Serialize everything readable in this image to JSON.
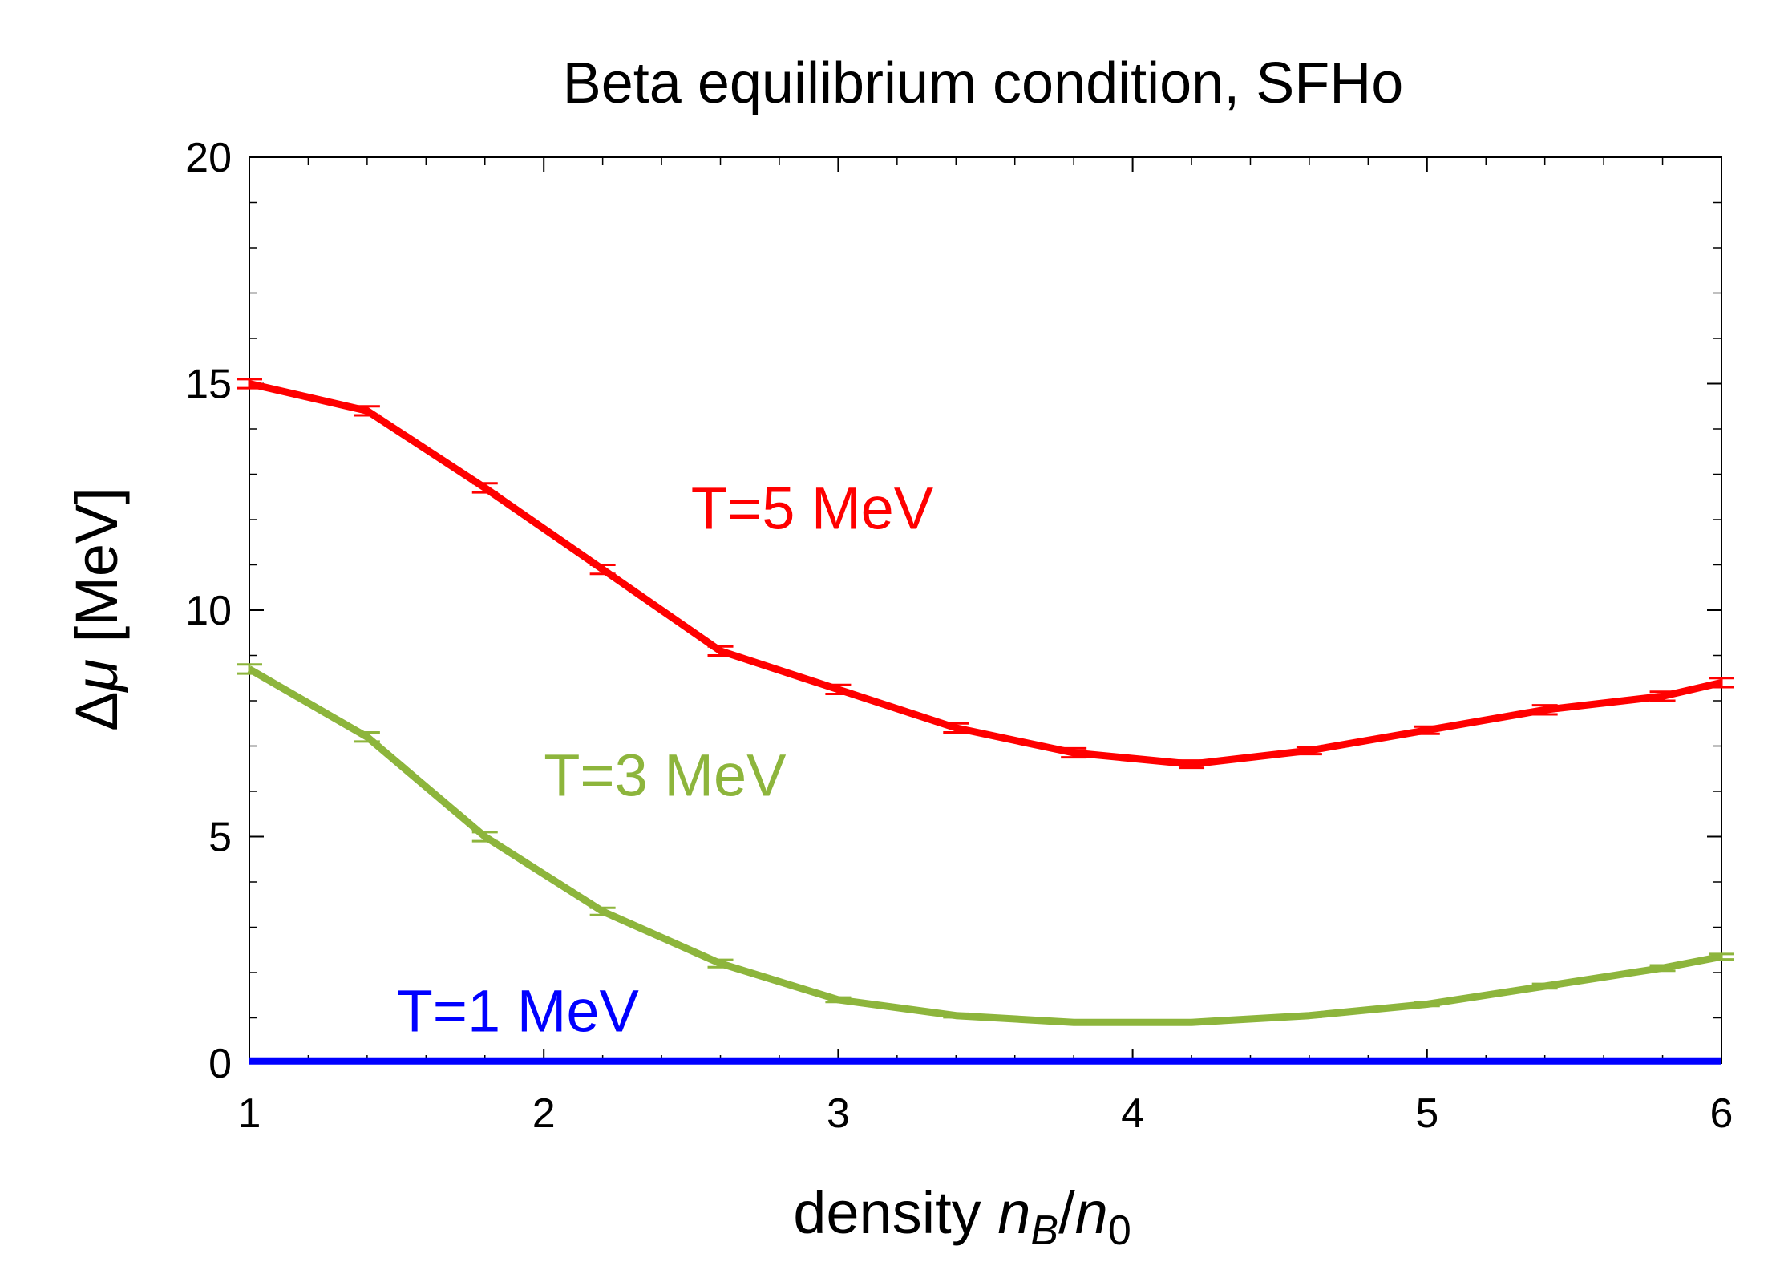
{
  "chart_data": {
    "type": "line",
    "title": "Beta equilibrium condition, SFHo",
    "xlabel": {
      "prefix": "density ",
      "var1": "n",
      "sub1": "B",
      "slash": "/",
      "var2": "n",
      "sub2": "0"
    },
    "ylabel": {
      "prefix": "Δ",
      "var": "μ",
      "suffix": " [MeV]"
    },
    "xlim": [
      1,
      6
    ],
    "ylim": [
      0,
      20
    ],
    "x_ticks": [
      1,
      2,
      3,
      4,
      5,
      6
    ],
    "y_ticks": [
      0,
      5,
      10,
      15,
      20
    ],
    "x": [
      1.0,
      1.4,
      1.8,
      2.2,
      2.6,
      3.0,
      3.4,
      3.8,
      4.2,
      4.6,
      5.0,
      5.4,
      5.8,
      6.0
    ],
    "series": [
      {
        "name": "T=5 MeV",
        "color": "#ff0000",
        "values": [
          15.0,
          14.4,
          12.7,
          10.9,
          9.1,
          8.25,
          7.4,
          6.85,
          6.6,
          6.9,
          7.35,
          7.8,
          8.1,
          8.4
        ],
        "errors": [
          0.1,
          0.1,
          0.1,
          0.1,
          0.1,
          0.1,
          0.1,
          0.1,
          0.08,
          0.08,
          0.08,
          0.1,
          0.1,
          0.1
        ]
      },
      {
        "name": "T=3 MeV",
        "color": "#8db53c",
        "values": [
          8.7,
          7.2,
          5.0,
          3.35,
          2.2,
          1.4,
          1.05,
          0.9,
          0.9,
          1.05,
          1.3,
          1.7,
          2.1,
          2.35
        ],
        "errors": [
          0.1,
          0.1,
          0.1,
          0.08,
          0.08,
          0.05,
          0.04,
          0.03,
          0.03,
          0.03,
          0.04,
          0.05,
          0.06,
          0.06
        ]
      },
      {
        "name": "T=1 MeV",
        "color": "#0000ff",
        "values": [
          0.05,
          0.05,
          0.05,
          0.05,
          0.05,
          0.05,
          0.05,
          0.05,
          0.05,
          0.05,
          0.05,
          0.05,
          0.05,
          0.05
        ],
        "errors": [
          0.0,
          0.0,
          0.0,
          0.0,
          0.0,
          0.0,
          0.0,
          0.0,
          0.0,
          0.0,
          0.0,
          0.0,
          0.0,
          0.0
        ]
      }
    ],
    "annotations": [
      {
        "text": "T=5 MeV",
        "x": 2.5,
        "y": 11.8,
        "color": "#ff0000"
      },
      {
        "text": "T=3 MeV",
        "x": 2.0,
        "y": 5.9,
        "color": "#8db53c"
      },
      {
        "text": "T=1 MeV",
        "x": 1.5,
        "y": 0.7,
        "color": "#0000ff"
      }
    ]
  }
}
